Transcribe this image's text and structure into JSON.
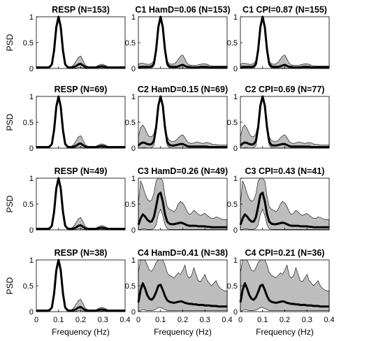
{
  "figure": {
    "rows": [
      {
        "row_label": "PSD",
        "panels": [
          {
            "title": "RESP (N=153)",
            "key": "resp"
          },
          {
            "title": "C1 HamD=0.06 (N=153)",
            "key": "c_low"
          },
          {
            "title": "C1 CPI=0.87 (N=155)",
            "key": "c_low"
          }
        ]
      },
      {
        "row_label": "PSD",
        "panels": [
          {
            "title": "RESP (N=69)",
            "key": "resp"
          },
          {
            "title": "C2 HamD=0.15 (N=69)",
            "key": "c_mid"
          },
          {
            "title": "C2 CPI=0.69 (N=77)",
            "key": "c_mid"
          }
        ]
      },
      {
        "row_label": "PSD",
        "panels": [
          {
            "title": "RESP (N=49)",
            "key": "resp"
          },
          {
            "title": "C3 HamD=0.26 (N=49)",
            "key": "c_high"
          },
          {
            "title": "C3 CPI=0.43 (N=41)",
            "key": "c_high"
          }
        ]
      },
      {
        "row_label": "PSD",
        "panels": [
          {
            "title": "RESP (N=38)",
            "key": "resp"
          },
          {
            "title": "C4 HamD=0.41 (N=38)",
            "key": "c_max"
          },
          {
            "title": "C4 CPI=0.21 (N=36)",
            "key": "c_max"
          }
        ]
      }
    ],
    "xlabel": "Frequency (Hz)",
    "x_ticks": [
      "0",
      "0.1",
      "0.2",
      "0.3",
      "0.4"
    ],
    "y_ticks": [
      "0",
      "0.5",
      "1"
    ]
  },
  "chart_data": {
    "type": "line",
    "layout": "4x3 small multiples",
    "xlim": [
      0,
      0.4
    ],
    "ylim": [
      0,
      1
    ],
    "x": [
      0,
      0.01,
      0.02,
      0.03,
      0.04,
      0.05,
      0.06,
      0.07,
      0.08,
      0.09,
      0.1,
      0.11,
      0.12,
      0.13,
      0.14,
      0.15,
      0.16,
      0.17,
      0.18,
      0.19,
      0.2,
      0.21,
      0.22,
      0.23,
      0.24,
      0.25,
      0.26,
      0.27,
      0.28,
      0.29,
      0.3,
      0.31,
      0.32,
      0.33,
      0.34,
      0.35,
      0.36,
      0.37,
      0.38,
      0.39,
      0.4
    ],
    "profiles": {
      "resp": {
        "mean": [
          0.02,
          0.02,
          0.02,
          0.02,
          0.02,
          0.02,
          0.03,
          0.08,
          0.35,
          0.8,
          1.0,
          0.8,
          0.35,
          0.08,
          0.03,
          0.02,
          0.02,
          0.03,
          0.05,
          0.08,
          0.09,
          0.06,
          0.03,
          0.02,
          0.02,
          0.02,
          0.02,
          0.02,
          0.03,
          0.04,
          0.04,
          0.03,
          0.02,
          0.02,
          0.02,
          0.02,
          0.02,
          0.02,
          0.02,
          0.02,
          0.02
        ],
        "upper": [
          0.03,
          0.03,
          0.03,
          0.03,
          0.03,
          0.03,
          0.04,
          0.09,
          0.36,
          0.82,
          1.0,
          0.82,
          0.36,
          0.09,
          0.04,
          0.03,
          0.04,
          0.08,
          0.15,
          0.22,
          0.24,
          0.16,
          0.07,
          0.04,
          0.03,
          0.03,
          0.03,
          0.04,
          0.06,
          0.08,
          0.08,
          0.06,
          0.04,
          0.03,
          0.03,
          0.03,
          0.03,
          0.03,
          0.03,
          0.03,
          0.03
        ],
        "lower": [
          0.0,
          0.0,
          0.0,
          0.0,
          0.0,
          0.0,
          0.01,
          0.06,
          0.33,
          0.78,
          1.0,
          0.78,
          0.33,
          0.06,
          0.01,
          0.0,
          0.0,
          0.0,
          0.01,
          0.02,
          0.02,
          0.01,
          0.0,
          0.0,
          0.0,
          0.0,
          0.0,
          0.0,
          0.0,
          0.01,
          0.01,
          0.0,
          0.0,
          0.0,
          0.0,
          0.0,
          0.0,
          0.0,
          0.0,
          0.0,
          0.0
        ]
      },
      "c_low": {
        "mean": [
          0.02,
          0.03,
          0.03,
          0.03,
          0.03,
          0.03,
          0.04,
          0.09,
          0.36,
          0.8,
          1.0,
          0.8,
          0.36,
          0.09,
          0.04,
          0.03,
          0.03,
          0.03,
          0.04,
          0.06,
          0.07,
          0.05,
          0.03,
          0.03,
          0.02,
          0.02,
          0.02,
          0.02,
          0.03,
          0.03,
          0.03,
          0.03,
          0.02,
          0.02,
          0.02,
          0.02,
          0.02,
          0.02,
          0.02,
          0.02,
          0.02
        ],
        "upper": [
          0.08,
          0.1,
          0.1,
          0.09,
          0.08,
          0.08,
          0.1,
          0.15,
          0.4,
          0.82,
          1.0,
          0.82,
          0.4,
          0.14,
          0.09,
          0.08,
          0.09,
          0.12,
          0.18,
          0.24,
          0.26,
          0.18,
          0.1,
          0.07,
          0.06,
          0.06,
          0.06,
          0.07,
          0.08,
          0.09,
          0.09,
          0.08,
          0.06,
          0.05,
          0.05,
          0.05,
          0.05,
          0.05,
          0.05,
          0.05,
          0.05
        ],
        "lower": [
          0.0,
          0.0,
          0.0,
          0.0,
          0.0,
          0.0,
          0.01,
          0.05,
          0.32,
          0.78,
          1.0,
          0.78,
          0.32,
          0.05,
          0.01,
          0.0,
          0.0,
          0.0,
          0.0,
          0.01,
          0.01,
          0.0,
          0.0,
          0.0,
          0.0,
          0.0,
          0.0,
          0.0,
          0.0,
          0.0,
          0.0,
          0.0,
          0.0,
          0.0,
          0.0,
          0.0,
          0.0,
          0.0,
          0.0,
          0.0,
          0.0
        ]
      },
      "c_mid": {
        "mean": [
          0.05,
          0.09,
          0.11,
          0.1,
          0.08,
          0.07,
          0.08,
          0.14,
          0.4,
          0.82,
          1.0,
          0.82,
          0.4,
          0.12,
          0.06,
          0.05,
          0.05,
          0.06,
          0.07,
          0.08,
          0.08,
          0.06,
          0.04,
          0.03,
          0.03,
          0.03,
          0.03,
          0.03,
          0.03,
          0.03,
          0.03,
          0.03,
          0.02,
          0.02,
          0.02,
          0.02,
          0.02,
          0.02,
          0.02,
          0.02,
          0.02
        ],
        "upper": [
          0.22,
          0.4,
          0.45,
          0.38,
          0.28,
          0.22,
          0.22,
          0.28,
          0.48,
          0.85,
          1.0,
          0.85,
          0.48,
          0.22,
          0.15,
          0.13,
          0.13,
          0.15,
          0.2,
          0.24,
          0.26,
          0.2,
          0.13,
          0.1,
          0.09,
          0.1,
          0.12,
          0.12,
          0.1,
          0.09,
          0.1,
          0.11,
          0.1,
          0.08,
          0.07,
          0.07,
          0.06,
          0.06,
          0.06,
          0.06,
          0.06
        ],
        "lower": [
          0.0,
          0.0,
          0.01,
          0.01,
          0.0,
          0.0,
          0.01,
          0.05,
          0.32,
          0.78,
          1.0,
          0.78,
          0.32,
          0.05,
          0.01,
          0.0,
          0.0,
          0.0,
          0.0,
          0.0,
          0.0,
          0.0,
          0.0,
          0.0,
          0.0,
          0.0,
          0.0,
          0.0,
          0.0,
          0.0,
          0.0,
          0.0,
          0.0,
          0.0,
          0.0,
          0.0,
          0.0,
          0.0,
          0.0,
          0.0,
          0.0
        ]
      },
      "c_high": {
        "mean": [
          0.1,
          0.22,
          0.3,
          0.26,
          0.2,
          0.16,
          0.16,
          0.25,
          0.45,
          0.68,
          0.72,
          0.55,
          0.3,
          0.16,
          0.12,
          0.11,
          0.11,
          0.12,
          0.13,
          0.14,
          0.13,
          0.11,
          0.09,
          0.08,
          0.08,
          0.08,
          0.08,
          0.07,
          0.07,
          0.07,
          0.07,
          0.06,
          0.06,
          0.05,
          0.05,
          0.05,
          0.05,
          0.05,
          0.05,
          0.05,
          0.05
        ],
        "upper": [
          0.5,
          0.95,
          0.85,
          0.7,
          0.6,
          0.55,
          0.58,
          0.7,
          0.95,
          1.0,
          1.0,
          0.95,
          0.65,
          0.45,
          0.4,
          0.38,
          0.35,
          0.4,
          0.5,
          0.55,
          0.52,
          0.45,
          0.35,
          0.3,
          0.32,
          0.38,
          0.35,
          0.3,
          0.28,
          0.3,
          0.32,
          0.28,
          0.25,
          0.22,
          0.22,
          0.25,
          0.24,
          0.22,
          0.2,
          0.2,
          0.2
        ],
        "lower": [
          0.0,
          0.01,
          0.02,
          0.02,
          0.01,
          0.01,
          0.01,
          0.03,
          0.1,
          0.3,
          0.4,
          0.28,
          0.1,
          0.02,
          0.01,
          0.01,
          0.01,
          0.01,
          0.01,
          0.01,
          0.01,
          0.01,
          0.01,
          0.01,
          0.01,
          0.01,
          0.01,
          0.01,
          0.01,
          0.01,
          0.01,
          0.01,
          0.01,
          0.01,
          0.01,
          0.01,
          0.01,
          0.01,
          0.01,
          0.01,
          0.01
        ]
      },
      "c_max": {
        "mean": [
          0.18,
          0.42,
          0.55,
          0.45,
          0.32,
          0.25,
          0.23,
          0.28,
          0.38,
          0.5,
          0.52,
          0.42,
          0.3,
          0.22,
          0.19,
          0.18,
          0.17,
          0.18,
          0.19,
          0.2,
          0.19,
          0.17,
          0.16,
          0.15,
          0.15,
          0.14,
          0.14,
          0.13,
          0.13,
          0.13,
          0.12,
          0.12,
          0.12,
          0.11,
          0.11,
          0.11,
          0.1,
          0.1,
          0.1,
          0.1,
          0.1
        ],
        "upper": [
          0.75,
          1.0,
          1.0,
          1.0,
          0.9,
          0.8,
          0.78,
          0.85,
          0.95,
          1.0,
          1.0,
          1.0,
          0.9,
          0.75,
          0.7,
          0.68,
          0.65,
          0.7,
          0.75,
          0.72,
          0.8,
          0.9,
          0.7,
          0.65,
          0.7,
          0.85,
          0.72,
          0.6,
          0.58,
          0.65,
          0.72,
          0.6,
          0.55,
          0.5,
          0.55,
          0.6,
          0.5,
          0.45,
          0.42,
          0.4,
          0.4
        ],
        "lower": [
          0.0,
          0.02,
          0.04,
          0.03,
          0.02,
          0.02,
          0.02,
          0.03,
          0.05,
          0.08,
          0.08,
          0.06,
          0.04,
          0.02,
          0.02,
          0.02,
          0.02,
          0.02,
          0.02,
          0.02,
          0.02,
          0.02,
          0.02,
          0.02,
          0.02,
          0.02,
          0.02,
          0.02,
          0.02,
          0.02,
          0.02,
          0.02,
          0.02,
          0.02,
          0.02,
          0.02,
          0.02,
          0.02,
          0.02,
          0.02,
          0.02
        ]
      }
    },
    "band_color": "#bdbdbd",
    "line_color": "#000000"
  }
}
